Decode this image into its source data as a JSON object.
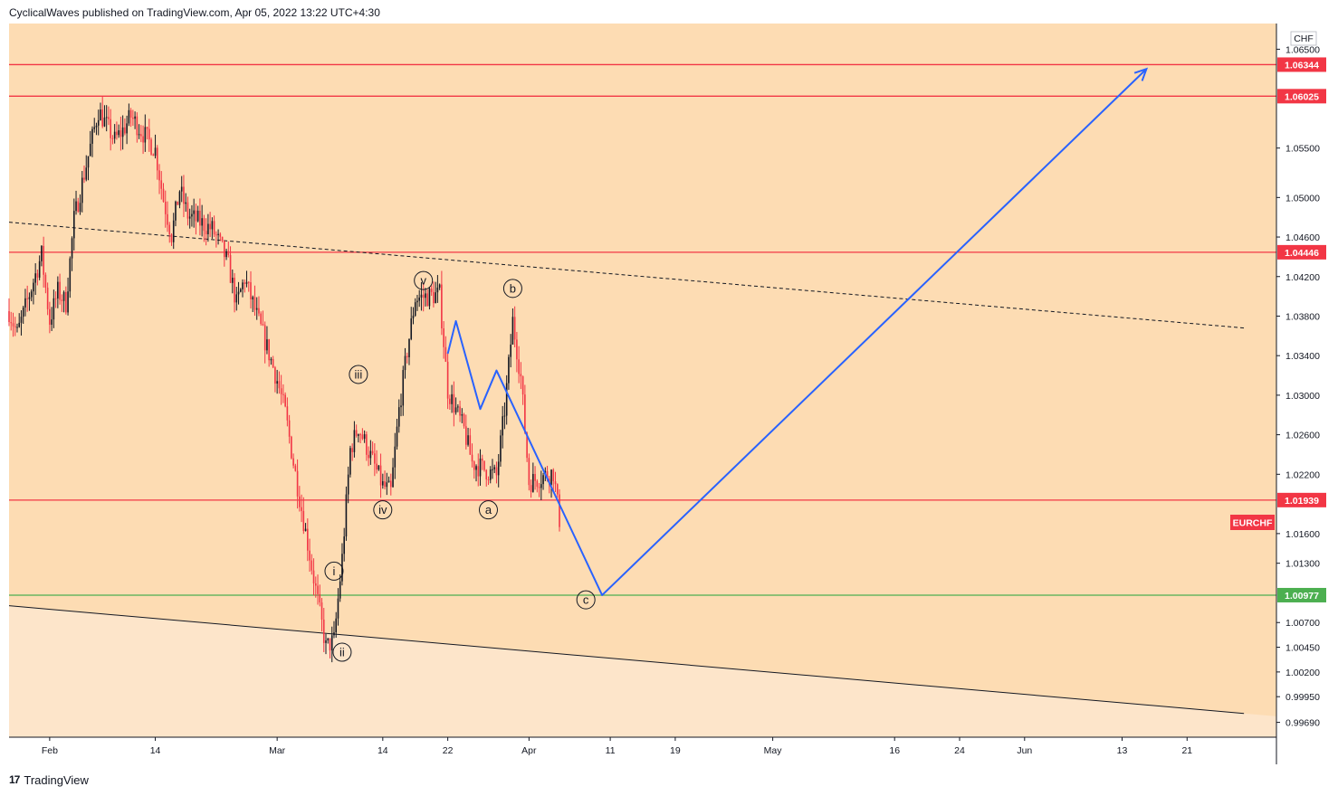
{
  "header": {
    "published": "CyclicalWaves published on TradingView.com, Apr 05, 2022 13:22 UTC+4:30"
  },
  "footer": {
    "brand": "TradingView",
    "logo_glyph": "17"
  },
  "currency_label": "CHF",
  "symbol_label": "EURCHF",
  "colors": {
    "background": "#fddcb3",
    "lower_zone": "#fde5ca",
    "level_red": "#f23645",
    "level_green": "#4caf50",
    "projection": "#2962ff",
    "candle_up": "#131722",
    "candle_down": "#f23645"
  },
  "chart_data": {
    "type": "candlestick",
    "symbol": "EURCHF",
    "x_ticks": [
      "Feb",
      "14",
      "Mar",
      "14",
      "22",
      "Apr",
      "11",
      "19",
      "May",
      "16",
      "24",
      "Jun",
      "13",
      "21"
    ],
    "y_ticks": [
      "1.06500",
      "1.05500",
      "1.05000",
      "1.04600",
      "1.04200",
      "1.03800",
      "1.03400",
      "1.03000",
      "1.02600",
      "1.02200",
      "1.01600",
      "1.01300",
      "1.00700",
      "1.00450",
      "1.00200",
      "0.99950",
      "0.99690"
    ],
    "ylim": [
      0.9954,
      1.0676
    ],
    "horizontal_levels": [
      {
        "label": "1.06344",
        "value": 1.06344,
        "color": "red"
      },
      {
        "label": "1.06025",
        "value": 1.06025,
        "color": "red"
      },
      {
        "label": "1.04446",
        "value": 1.04446,
        "color": "red"
      },
      {
        "label": "1.01939",
        "value": 1.01939,
        "color": "red"
      },
      {
        "label": "1.00977",
        "value": 1.00977,
        "color": "green"
      }
    ],
    "price_path": [
      [
        "2022-01-27",
        1.0385
      ],
      [
        "2022-01-28",
        1.0362
      ],
      [
        "2022-01-31",
        1.0442
      ],
      [
        "2022-02-01",
        1.0375
      ],
      [
        "2022-02-02",
        1.0405
      ],
      [
        "2022-02-03",
        1.0393
      ],
      [
        "2022-02-04",
        1.0478
      ],
      [
        "2022-02-07",
        1.0588
      ],
      [
        "2022-02-08",
        1.0573
      ],
      [
        "2022-02-09",
        1.0558
      ],
      [
        "2022-02-10",
        1.0568
      ],
      [
        "2022-02-11",
        1.0582
      ],
      [
        "2022-02-14",
        1.0548
      ],
      [
        "2022-02-15",
        1.0498
      ],
      [
        "2022-02-16",
        1.0462
      ],
      [
        "2022-02-17",
        1.0508
      ],
      [
        "2022-02-18",
        1.0482
      ],
      [
        "2022-02-21",
        1.0468
      ],
      [
        "2022-02-22",
        1.0452
      ],
      [
        "2022-02-23",
        1.0432
      ],
      [
        "2022-02-24",
        1.0392
      ],
      [
        "2022-02-25",
        1.0418
      ],
      [
        "2022-02-28",
        1.0342
      ],
      [
        "2022-03-01",
        1.0315
      ],
      [
        "2022-03-02",
        1.0282
      ],
      [
        "2022-03-03",
        1.0232
      ],
      [
        "2022-03-04",
        1.0185
      ],
      [
        "2022-03-07",
        1.0045
      ],
      [
        "2022-03-08",
        1.0052
      ],
      [
        "2022-03-09",
        1.0135
      ],
      [
        "2022-03-10",
        1.0245
      ],
      [
        "2022-03-11",
        1.0268
      ],
      [
        "2022-03-14",
        1.0208
      ],
      [
        "2022-03-15",
        1.0202
      ],
      [
        "2022-03-16",
        1.0285
      ],
      [
        "2022-03-17",
        1.0345
      ],
      [
        "2022-03-18",
        1.0398
      ],
      [
        "2022-03-21",
        1.0402
      ],
      [
        "2022-03-22",
        1.0305
      ],
      [
        "2022-03-23",
        1.0285
      ],
      [
        "2022-03-24",
        1.0265
      ],
      [
        "2022-03-25",
        1.0232
      ],
      [
        "2022-03-28",
        1.0218
      ],
      [
        "2022-03-29",
        1.0285
      ],
      [
        "2022-03-30",
        1.0375
      ],
      [
        "2022-03-31",
        1.0318
      ],
      [
        "2022-04-01",
        1.0212
      ],
      [
        "2022-04-04",
        1.0222
      ],
      [
        "2022-04-05",
        1.0158
      ]
    ],
    "trendlines": [
      {
        "style": "dashed",
        "from": [
          "2022-01-27",
          1.0475
        ],
        "to": [
          "2022-06-28",
          1.0368
        ]
      },
      {
        "style": "solid",
        "from": [
          "2022-01-27",
          1.0087
        ],
        "to": [
          "2022-06-28",
          0.9978
        ]
      }
    ],
    "projection_path": [
      [
        "2022-03-22",
        1.0342
      ],
      [
        "2022-03-23",
        1.0375
      ],
      [
        "2022-03-26",
        1.0286
      ],
      [
        "2022-03-28",
        1.0325
      ],
      [
        "2022-04-10",
        1.00977
      ],
      [
        "2022-06-16",
        1.063
      ]
    ],
    "wave_labels": [
      {
        "text": "v",
        "date": "2022-03-19",
        "price": 1.0416
      },
      {
        "text": "iii",
        "date": "2022-03-11",
        "price": 1.0321
      },
      {
        "text": "iv",
        "date": "2022-03-14",
        "price": 1.0184
      },
      {
        "text": "i",
        "date": "2022-03-08",
        "price": 1.0122
      },
      {
        "text": "ii",
        "date": "2022-03-09",
        "price": 1.004
      },
      {
        "text": "b",
        "date": "2022-03-30",
        "price": 1.0408
      },
      {
        "text": "a",
        "date": "2022-03-27",
        "price": 1.0184
      },
      {
        "text": "c",
        "date": "2022-04-08",
        "price": 1.0093
      }
    ]
  }
}
